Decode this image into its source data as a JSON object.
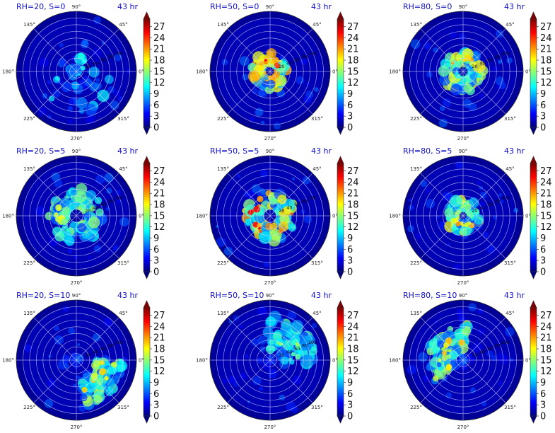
{
  "colors": {
    "jet": [
      "#00007f",
      "#0000ff",
      "#007fff",
      "#00ffff",
      "#7fff7f",
      "#ffff00",
      "#ff7f00",
      "#ff0000",
      "#7f0000"
    ],
    "title_color": "#1010c8",
    "grid_color": "#d8d8ff"
  },
  "chart_data": {
    "type": "heatmap",
    "projection": "polar",
    "time_label": "43 hr",
    "angle_labels": [
      "90°",
      "45°",
      "0°",
      "315°",
      "270°",
      "225°",
      "180°",
      "135°"
    ],
    "radial_labels": [
      "20",
      "40",
      "60",
      "80",
      "100"
    ],
    "colorbar": {
      "min": 0,
      "max": 29,
      "ticks": [
        "0",
        "3",
        "6",
        "9",
        "12",
        "15",
        "18",
        "21",
        "24",
        "27"
      ],
      "extend": "both"
    },
    "panels": [
      {
        "title": "RH=20, S=0",
        "pattern": "scattered",
        "rain_peak": 12,
        "ring_radius": 15,
        "angle_center": 45,
        "angle_spread": 360
      },
      {
        "title": "RH=50, S=0",
        "pattern": "ring",
        "rain_peak": 26,
        "ring_radius": 20,
        "angle_center": 90,
        "angle_spread": 360
      },
      {
        "title": "RH=80, S=0",
        "pattern": "ring",
        "rain_peak": 22,
        "ring_radius": 22,
        "angle_center": 90,
        "angle_spread": 360
      },
      {
        "title": "RH=20, S=5",
        "pattern": "ring",
        "rain_peak": 18,
        "ring_radius": 30,
        "angle_center": 180,
        "angle_spread": 360
      },
      {
        "title": "RH=50, S=5",
        "pattern": "ring",
        "rain_peak": 26,
        "ring_radius": 28,
        "angle_center": 180,
        "angle_spread": 360
      },
      {
        "title": "RH=80, S=5",
        "pattern": "ring",
        "rain_peak": 22,
        "ring_radius": 18,
        "angle_center": 260,
        "angle_spread": 360
      },
      {
        "title": "RH=20, S=10",
        "pattern": "sector",
        "rain_peak": 20,
        "ring_radius": 55,
        "angle_center": 320,
        "angle_spread": 80
      },
      {
        "title": "RH=50, S=10",
        "pattern": "band",
        "rain_peak": 16,
        "ring_radius": 45,
        "angle_center": 45,
        "angle_spread": 100
      },
      {
        "title": "RH=80, S=10",
        "pattern": "band",
        "rain_peak": 20,
        "ring_radius": 35,
        "angle_center": 150,
        "angle_spread": 140
      }
    ]
  }
}
